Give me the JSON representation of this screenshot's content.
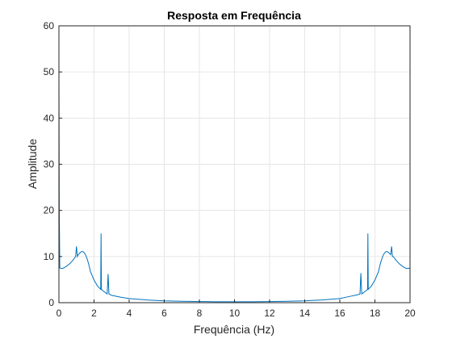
{
  "chart_data": {
    "type": "line",
    "title": "Resposta em Frequência",
    "xlabel": "Frequência (Hz)",
    "ylabel": "Amplitude",
    "xlim": [
      0,
      20
    ],
    "ylim": [
      0,
      60
    ],
    "xticks": [
      0,
      2,
      4,
      6,
      8,
      10,
      12,
      14,
      16,
      18,
      20
    ],
    "yticks": [
      0,
      10,
      20,
      30,
      40,
      50,
      60
    ],
    "grid": true,
    "legend": "none",
    "colors": {
      "line": "#0072BD",
      "grid": "#e6e6e6",
      "axis": "#262626"
    },
    "series": [
      {
        "x": [
          0,
          0.02,
          0.05,
          0.2,
          0.4,
          0.6,
          0.8,
          0.95,
          1.0,
          1.05,
          1.1,
          1.2,
          1.3,
          1.4,
          1.5,
          1.6,
          1.7,
          1.8,
          2.0,
          2.2,
          2.38,
          2.4,
          2.42,
          2.5,
          2.75,
          2.8,
          2.85,
          3.0,
          3.5,
          4.0,
          5.0,
          6.0,
          7.0,
          8.0,
          9.0,
          10.0,
          11.0,
          12.0,
          13.0,
          14.0,
          15.0,
          16.0,
          16.5,
          17.0,
          17.15,
          17.2,
          17.25,
          17.5,
          17.58,
          17.6,
          17.62,
          17.8,
          18.0,
          18.2,
          18.3,
          18.4,
          18.5,
          18.6,
          18.7,
          18.8,
          18.9,
          18.95,
          19.0,
          19.05,
          19.2,
          19.4,
          19.6,
          19.8,
          20.0
        ],
        "y": [
          52,
          20,
          7.5,
          7.4,
          7.8,
          8.4,
          9.2,
          10.0,
          12.2,
          10.0,
          10.4,
          10.8,
          11.1,
          11.0,
          10.5,
          9.6,
          8.3,
          6.7,
          4.9,
          3.6,
          2.9,
          15.0,
          2.9,
          2.6,
          1.9,
          6.2,
          1.9,
          1.6,
          1.2,
          0.9,
          0.6,
          0.4,
          0.3,
          0.25,
          0.2,
          0.2,
          0.2,
          0.25,
          0.3,
          0.4,
          0.6,
          0.9,
          1.3,
          1.7,
          1.9,
          6.4,
          1.9,
          2.6,
          2.9,
          15.0,
          2.9,
          3.6,
          4.9,
          6.7,
          8.3,
          9.6,
          10.5,
          11.0,
          11.1,
          10.8,
          10.4,
          12.2,
          10.0,
          10.0,
          9.2,
          8.4,
          7.8,
          7.4,
          7.5
        ]
      }
    ]
  }
}
